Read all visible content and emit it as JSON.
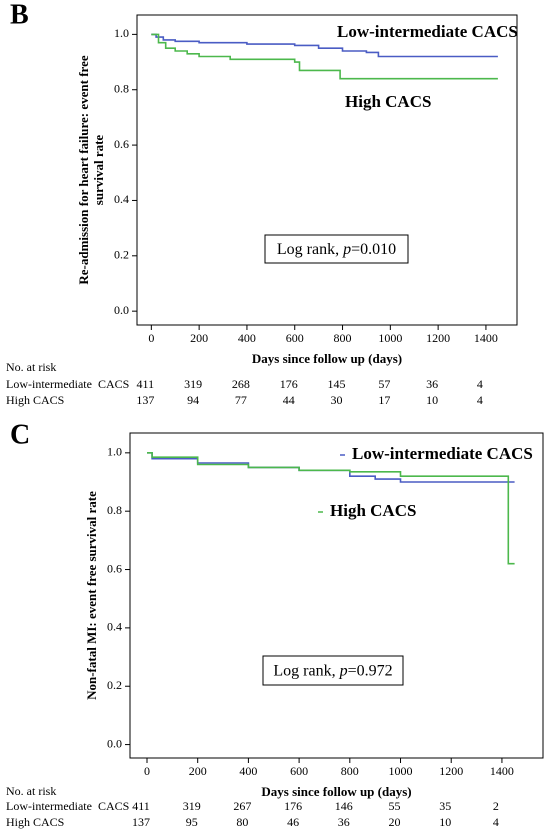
{
  "chart_data": [
    {
      "type": "line",
      "panel_label": "B",
      "ylabel": [
        "Re-admission for heart failure: event free",
        "survival rate"
      ],
      "xlabel": "Days since follow up (days)",
      "xlim": [
        -60,
        1530
      ],
      "ylim": [
        -0.05,
        1.07
      ],
      "xticks": [
        0,
        200,
        400,
        600,
        800,
        1000,
        1200,
        1400
      ],
      "yticks": [
        {
          "value": 0,
          "label": "0.0"
        },
        {
          "value": 0.2,
          "label": "0.2"
        },
        {
          "value": 0.4,
          "label": "0.4"
        },
        {
          "value": 0.6,
          "label": "0.6"
        },
        {
          "value": 0.8,
          "label": "0.8"
        },
        {
          "value": 1,
          "label": "1.0"
        }
      ],
      "series": [
        {
          "name": "Low-intermediate CACS",
          "color": "#4a5cc4",
          "x": [
            0,
            20,
            20,
            50,
            50,
            100,
            100,
            200,
            200,
            400,
            400,
            600,
            600,
            700,
            700,
            800,
            800,
            900,
            900,
            950,
            950,
            1450
          ],
          "values": [
            1.0,
            1.0,
            0.99,
            0.99,
            0.98,
            0.98,
            0.975,
            0.975,
            0.97,
            0.97,
            0.965,
            0.965,
            0.96,
            0.96,
            0.95,
            0.95,
            0.94,
            0.94,
            0.935,
            0.935,
            0.92,
            0.92
          ]
        },
        {
          "name": "High CACS",
          "color": "#4cb84c",
          "x": [
            0,
            30,
            30,
            60,
            60,
            100,
            100,
            150,
            150,
            200,
            200,
            330,
            330,
            600,
            600,
            620,
            620,
            790,
            790,
            1450
          ],
          "values": [
            1.0,
            1.0,
            0.97,
            0.97,
            0.95,
            0.95,
            0.94,
            0.94,
            0.93,
            0.93,
            0.92,
            0.92,
            0.91,
            0.91,
            0.9,
            0.9,
            0.87,
            0.87,
            0.84,
            0.84
          ]
        }
      ],
      "annotation": [
        "Log rank, ",
        "p",
        "=0.010"
      ],
      "risk_table": {
        "title": "No. at risk",
        "rows": [
          {
            "name": "Low-intermediate  CACS",
            "counts": [
              411,
              319,
              268,
              176,
              145,
              57,
              36,
              4
            ]
          },
          {
            "name": "High CACS",
            "counts": [
              137,
              94,
              77,
              44,
              30,
              17,
              10,
              4
            ]
          }
        ]
      }
    },
    {
      "type": "line",
      "panel_label": "C",
      "ylabel": [
        "Non-fatal MI: event free survival rate"
      ],
      "xlabel": "Days since follow up (days)",
      "xlim": [
        -67,
        1562
      ],
      "ylim": [
        -0.046,
        1.068
      ],
      "xticks": [
        0,
        200,
        400,
        600,
        800,
        1000,
        1200,
        1400
      ],
      "yticks": [
        {
          "value": 0,
          "label": "0.0"
        },
        {
          "value": 0.2,
          "label": "0.2"
        },
        {
          "value": 0.4,
          "label": "0.4"
        },
        {
          "value": 0.6,
          "label": "0.6"
        },
        {
          "value": 0.8,
          "label": "0.8"
        },
        {
          "value": 1,
          "label": "1.0"
        }
      ],
      "series": [
        {
          "name": "Low-intermediate CACS",
          "color": "#4a5cc4",
          "x": [
            0,
            20,
            20,
            200,
            200,
            400,
            400,
            600,
            600,
            800,
            800,
            900,
            900,
            1000,
            1000,
            1450
          ],
          "values": [
            1.0,
            1.0,
            0.98,
            0.98,
            0.965,
            0.965,
            0.95,
            0.95,
            0.94,
            0.94,
            0.92,
            0.92,
            0.91,
            0.91,
            0.9,
            0.9
          ]
        },
        {
          "name": "High CACS",
          "color": "#4cb84c",
          "x": [
            0,
            20,
            20,
            200,
            200,
            400,
            400,
            600,
            600,
            800,
            800,
            1000,
            1000,
            1425,
            1425,
            1450
          ],
          "values": [
            1.0,
            1.0,
            0.985,
            0.985,
            0.96,
            0.96,
            0.95,
            0.95,
            0.94,
            0.94,
            0.935,
            0.935,
            0.92,
            0.92,
            0.62,
            0.62
          ]
        }
      ],
      "annotation": [
        "Log rank, ",
        "p",
        "=0.972"
      ],
      "risk_table": {
        "title": "No. at risk",
        "rows": [
          {
            "name": "Low-intermediate  CACS",
            "counts": [
              411,
              319,
              267,
              176,
              146,
              55,
              35,
              2
            ]
          },
          {
            "name": "High CACS",
            "counts": [
              137,
              95,
              80,
              46,
              36,
              20,
              10,
              4
            ]
          }
        ]
      }
    }
  ]
}
